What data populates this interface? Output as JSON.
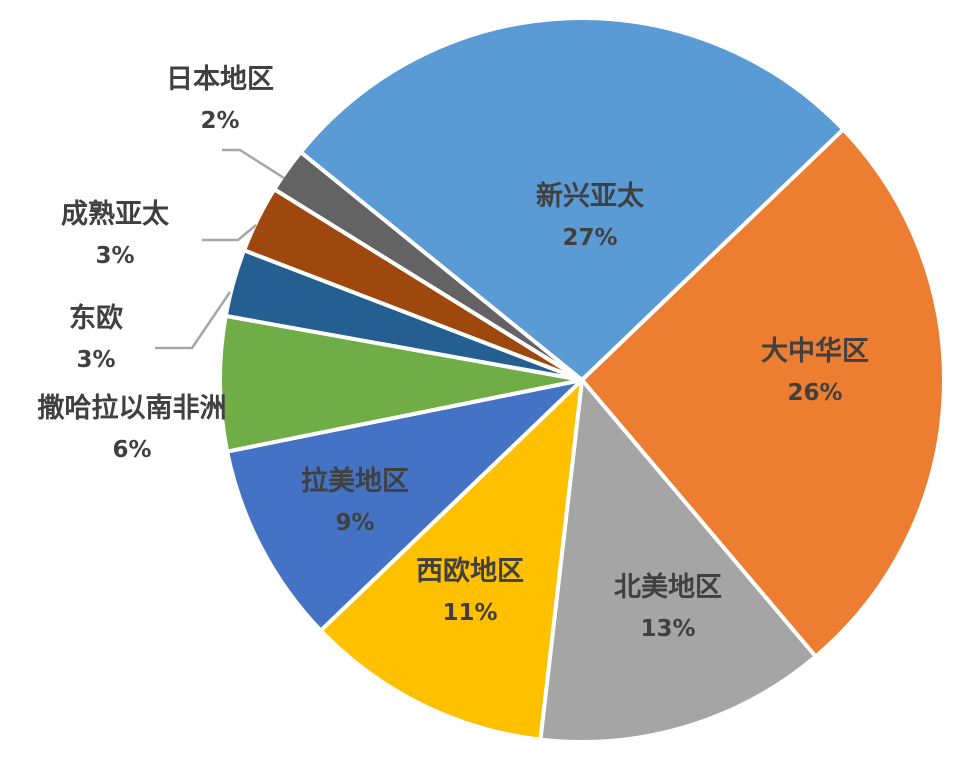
{
  "chart_data": {
    "type": "pie",
    "title": "",
    "slices": [
      {
        "label": "新兴亚太",
        "value": 27,
        "value_label": "27%",
        "color": "#5b9bd5"
      },
      {
        "label": "大中华区",
        "value": 26,
        "value_label": "26%",
        "color": "#ed7d31"
      },
      {
        "label": "北美地区",
        "value": 13,
        "value_label": "13%",
        "color": "#a5a5a5"
      },
      {
        "label": "西欧地区",
        "value": 11,
        "value_label": "11%",
        "color": "#ffc000"
      },
      {
        "label": "拉美地区",
        "value": 9,
        "value_label": "9%",
        "color": "#4472c4"
      },
      {
        "label": "撒哈拉以南非洲",
        "value": 6,
        "value_label": "6%",
        "color": "#70ad47"
      },
      {
        "label": "东欧",
        "value": 3,
        "value_label": "3%",
        "color": "#255e91"
      },
      {
        "label": "成熟亚太",
        "value": 3,
        "value_label": "3%",
        "color": "#9e480e"
      },
      {
        "label": "日本地区",
        "value": 2,
        "value_label": "2%",
        "color": "#636363"
      }
    ]
  }
}
